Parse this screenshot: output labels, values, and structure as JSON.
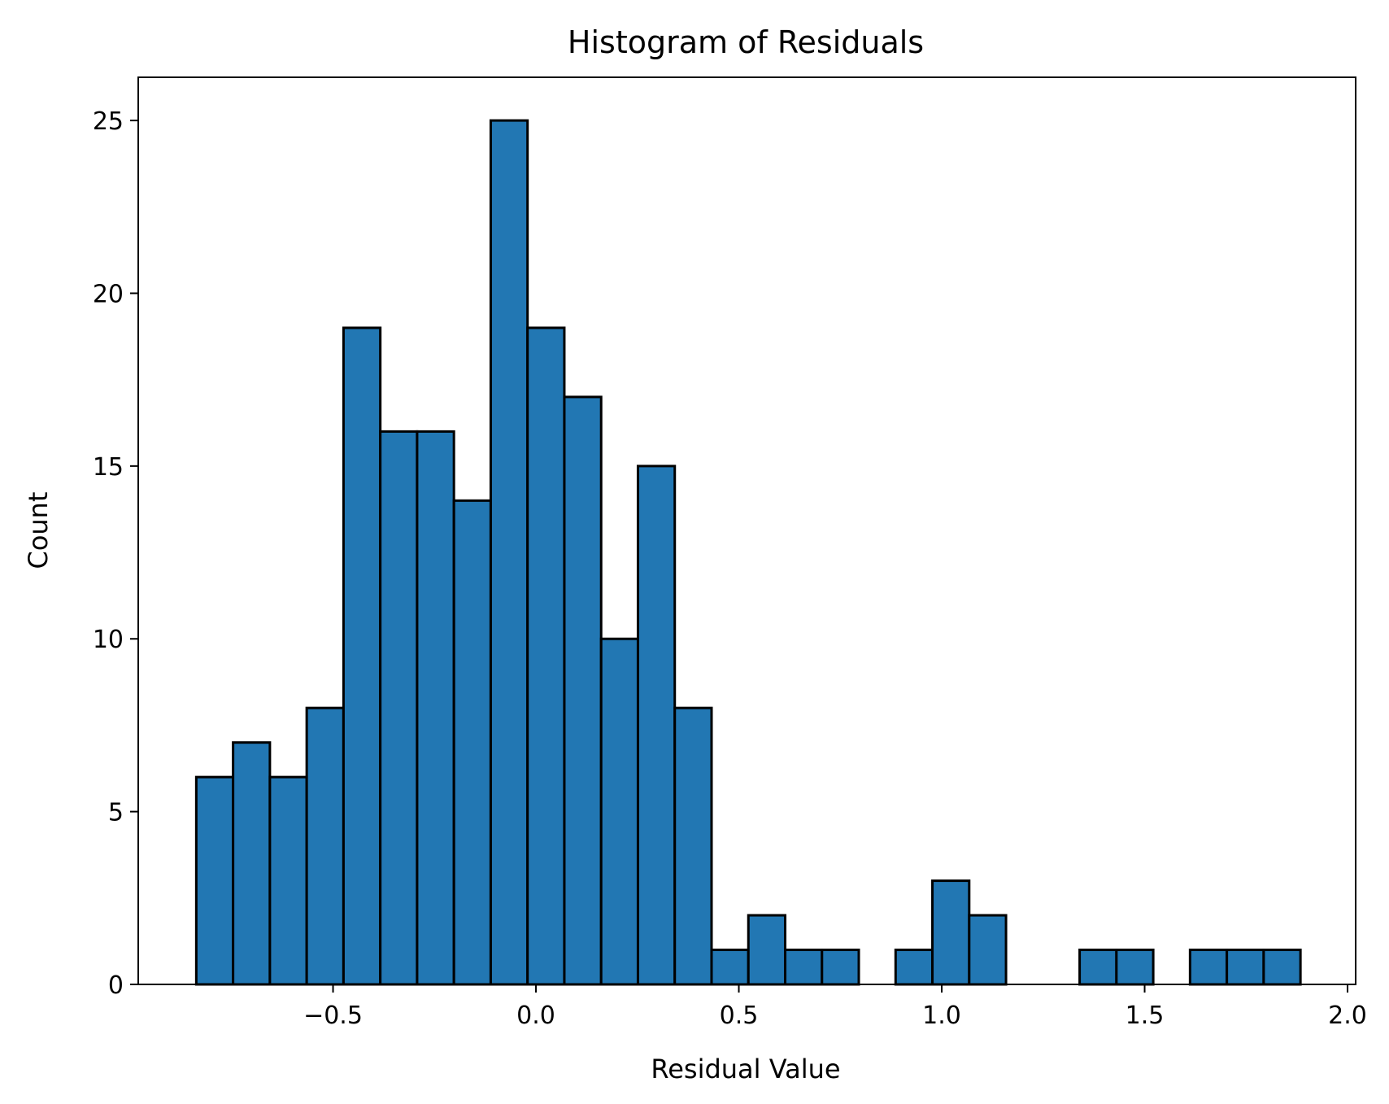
{
  "chart_data": {
    "type": "bar",
    "title": "Histogram of Residuals",
    "xlabel": "Residual Value",
    "ylabel": "Count",
    "xlim": [
      -0.98,
      2.02
    ],
    "ylim": [
      0,
      26.25
    ],
    "xticks": [
      -0.5,
      0.0,
      0.5,
      1.0,
      1.5,
      2.0
    ],
    "xtick_labels": [
      "−0.5",
      "0.0",
      "0.5",
      "1.0",
      "1.5",
      "2.0"
    ],
    "yticks": [
      0,
      5,
      10,
      15,
      20,
      25
    ],
    "ytick_labels": [
      "0",
      "5",
      "10",
      "15",
      "20",
      "25"
    ],
    "bin_start": -0.837,
    "bin_width": 0.0907,
    "values": [
      6,
      7,
      6,
      8,
      19,
      16,
      16,
      14,
      25,
      19,
      17,
      10,
      15,
      8,
      1,
      2,
      1,
      1,
      0,
      1,
      3,
      2,
      0,
      0,
      1,
      1,
      0,
      1,
      1,
      1
    ],
    "bar_color": "#2277b3",
    "edge_color": "#000000",
    "grid": false
  }
}
